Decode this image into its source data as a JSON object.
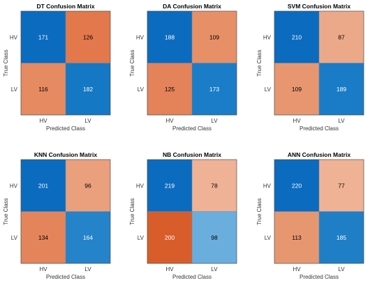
{
  "chart_data": [
    {
      "type": "heatmap",
      "title": "DT Confusion Matrix",
      "xlabel": "Predicted Class",
      "ylabel": "True Class",
      "row_labels": [
        "HV",
        "LV"
      ],
      "col_labels": [
        "HV",
        "LV"
      ],
      "values": [
        [
          171,
          126
        ],
        [
          116,
          182
        ]
      ],
      "cell_colors": [
        [
          "#0b6bbf",
          "#e2784b"
        ],
        [
          "#e58a61",
          "#1478c4"
        ]
      ],
      "text_colors": [
        [
          "#ffffff",
          "#000000"
        ],
        [
          "#000000",
          "#ffffff"
        ]
      ]
    },
    {
      "type": "heatmap",
      "title": "DA Confusion Matrix",
      "xlabel": "Predicted Class",
      "ylabel": "True Class",
      "row_labels": [
        "HV",
        "LV"
      ],
      "col_labels": [
        "HV",
        "LV"
      ],
      "values": [
        [
          188,
          109
        ],
        [
          125,
          173
        ]
      ],
      "cell_colors": [
        [
          "#0b6bbf",
          "#e79067"
        ],
        [
          "#e4825a",
          "#1b7dc7"
        ]
      ],
      "text_colors": [
        [
          "#ffffff",
          "#000000"
        ],
        [
          "#000000",
          "#ffffff"
        ]
      ]
    },
    {
      "type": "heatmap",
      "title": "SVM Confusion Matrix",
      "xlabel": "Predicted Class",
      "ylabel": "True Class",
      "row_labels": [
        "HV",
        "LV"
      ],
      "col_labels": [
        "HV",
        "LV"
      ],
      "values": [
        [
          210,
          87
        ],
        [
          109,
          189
        ]
      ],
      "cell_colors": [
        [
          "#0b6bbf",
          "#eca98a"
        ],
        [
          "#e7966f",
          "#1a7cc6"
        ]
      ],
      "text_colors": [
        [
          "#ffffff",
          "#000000"
        ],
        [
          "#000000",
          "#ffffff"
        ]
      ]
    },
    {
      "type": "heatmap",
      "title": "KNN Confusion Matrix",
      "xlabel": "Predicted Class",
      "ylabel": "True Class",
      "row_labels": [
        "HV",
        "LV"
      ],
      "col_labels": [
        "HV",
        "LV"
      ],
      "values": [
        [
          201,
          96
        ],
        [
          134,
          164
        ]
      ],
      "cell_colors": [
        [
          "#0b6bbf",
          "#ea9f7d"
        ],
        [
          "#e4845b",
          "#2483c9"
        ]
      ],
      "text_colors": [
        [
          "#ffffff",
          "#000000"
        ],
        [
          "#000000",
          "#ffffff"
        ]
      ]
    },
    {
      "type": "heatmap",
      "title": "NB Confusion Matrix",
      "xlabel": "Predicted Class",
      "ylabel": "True Class",
      "row_labels": [
        "HV",
        "LV"
      ],
      "col_labels": [
        "HV",
        "LV"
      ],
      "values": [
        [
          219,
          78
        ],
        [
          200,
          98
        ]
      ],
      "cell_colors": [
        [
          "#0b6bbf",
          "#efb297"
        ],
        [
          "#d95d2a",
          "#6aaede"
        ]
      ],
      "text_colors": [
        [
          "#ffffff",
          "#000000"
        ],
        [
          "#ffffff",
          "#000000"
        ]
      ]
    },
    {
      "type": "heatmap",
      "title": "ANN Confusion Matrix",
      "xlabel": "Predicted Class",
      "ylabel": "True Class",
      "row_labels": [
        "HV",
        "LV"
      ],
      "col_labels": [
        "HV",
        "LV"
      ],
      "values": [
        [
          220,
          77
        ],
        [
          113,
          185
        ]
      ],
      "cell_colors": [
        [
          "#0b6bbf",
          "#efb295"
        ],
        [
          "#e79770",
          "#1e7fc7"
        ]
      ],
      "text_colors": [
        [
          "#ffffff",
          "#000000"
        ],
        [
          "#000000",
          "#ffffff"
        ]
      ]
    }
  ]
}
